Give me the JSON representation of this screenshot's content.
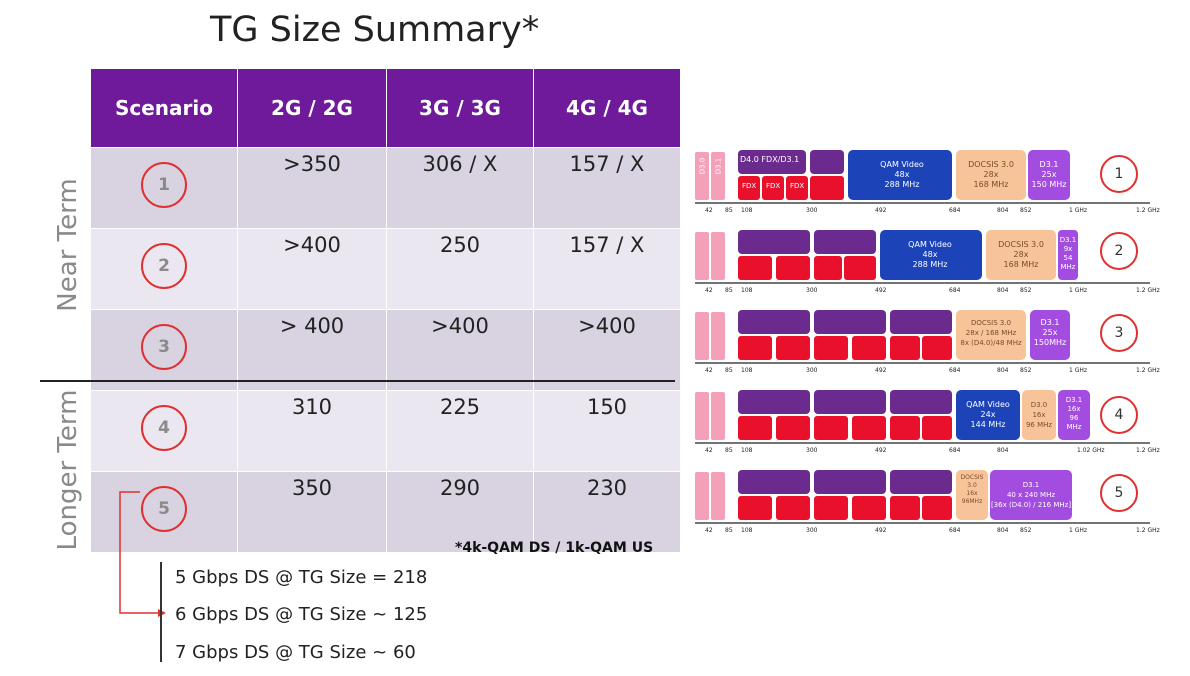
{
  "title": "TG Size Summary*",
  "table": {
    "headers": [
      "Scenario",
      "2G / 2G",
      "3G / 3G",
      "4G / 4G"
    ],
    "rows": [
      {
        "scenario": "1",
        "c2g": ">350",
        "c3g": "306 / X",
        "c4g": "157 / X"
      },
      {
        "scenario": "2",
        "c2g": ">400",
        "c3g": "250",
        "c4g": "157 / X"
      },
      {
        "scenario": "3",
        "c2g": "> 400",
        "c3g": ">400",
        "c4g": ">400"
      },
      {
        "scenario": "4",
        "c2g": "310",
        "c3g": "225",
        "c4g": "150"
      },
      {
        "scenario": "5",
        "c2g": "350",
        "c3g": "290",
        "c4g": "230"
      }
    ]
  },
  "side_labels": {
    "near": "Near Term",
    "longer": "Longer Term"
  },
  "footnote": "*4k-QAM DS / 1k-QAM US",
  "gbps_notes": [
    "5 Gbps DS @ TG Size = 218",
    "6 Gbps DS @ TG Size ~ 125",
    "7 Gbps DS @ TG Size ~ 60"
  ],
  "axis_ticks": {
    "s1": [
      "42",
      "85",
      "108",
      "300",
      "492",
      "684",
      "804",
      "852",
      "1 GHz",
      "1.2 GHz"
    ],
    "s4": [
      "42",
      "85",
      "108",
      "300",
      "492",
      "684",
      "804",
      "1.02 GHz",
      "1.2 GHz"
    ]
  },
  "spectrum_labels": {
    "d3_0": "D3.0",
    "d3_1": "D3.1",
    "d40": "D4.0 FDX/D3.1",
    "d40_short": "D4.0 FDX/D3.1",
    "fdx": "FDX",
    "qam1": [
      "QAM Video",
      "48x",
      "288 MHz"
    ],
    "docsis1": [
      "DOCSIS 3.0",
      "28x",
      "168 MHz"
    ],
    "d31_1": [
      "D3.1",
      "25x",
      "150 MHz"
    ],
    "qam2": [
      "QAM Video",
      "48x",
      "288 MHz"
    ],
    "docsis2": [
      "DOCSIS 3.0",
      "28x",
      "168 MHz"
    ],
    "d31_2": [
      "D3.1",
      "9x",
      "54",
      "MHz"
    ],
    "docsis3": [
      "DOCSIS 3.0",
      "28x / 168 MHz",
      "8x (D4.0)/48 MHz"
    ],
    "d31_3": [
      "D3.1",
      "25x",
      "150MHz"
    ],
    "qam4": [
      "QAM Video",
      "24x",
      "144 MHz"
    ],
    "d30_4": [
      "D3.0",
      "16x",
      "96 MHz"
    ],
    "d31_4": [
      "D3.1",
      "16x",
      "96",
      "MHz"
    ],
    "docsis5": [
      "DOCSIS",
      "3.0",
      "16x",
      "96MHz"
    ],
    "d31_5": [
      "D3.1",
      "40 x 240 MHz",
      "[36x (D4.0) / 216 MHz]"
    ]
  },
  "colors": {
    "purple_header": "#6f1a9a",
    "row_dark": "#d8d2e1",
    "row_light": "#ebe7f0",
    "circle_red": "#e03030",
    "fdx_red": "#e8102a",
    "d40_purple": "#6a2a8e",
    "qam_blue": "#1c44b8",
    "docsis_peach": "#f7c49a",
    "d31_violet": "#a34ce0",
    "pink": "#f4a0b8"
  }
}
